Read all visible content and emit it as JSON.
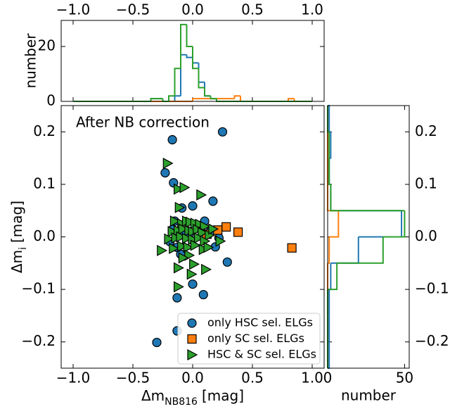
{
  "chart_data": [
    {
      "type": "scatter",
      "annotation": "After NB correction",
      "xlabel": "Δm",
      "xlabel_sub": "NB816",
      "xlabel_unit": "[mag]",
      "ylabel": "Δm",
      "ylabel_sub": "i",
      "ylabel_unit": "[mag]",
      "xlim": [
        -1.1,
        1.1
      ],
      "xticks": [
        {
          "value": -1.0,
          "label": "−1.0"
        },
        {
          "value": -0.5,
          "label": "−0.5"
        },
        {
          "value": 0,
          "label": "0.0"
        },
        0.5,
        {
          "value": 1.0,
          "label": "1.0"
        }
      ],
      "ylim": [
        -0.25,
        0.25
      ],
      "yticks": [
        {
          "value": -0.2,
          "label": "−0.2"
        },
        {
          "value": -0.1,
          "label": "−0.1"
        },
        {
          "value": 0,
          "label": "0.0"
        },
        0.1,
        0.2
      ],
      "legend": "lower right",
      "series": [
        {
          "name": "only HSC sel. ELGs",
          "color": "#1f77b4",
          "marker": "circle",
          "x": [
            0.25,
            -0.17,
            -0.23,
            -0.16,
            0.0,
            0.17,
            -0.09,
            -0.15,
            -0.17,
            0.29,
            0.0,
            0.09,
            -0.13,
            -0.13,
            -0.3,
            -0.19,
            0.15,
            0.1,
            0.22,
            0.19,
            -0.1,
            -0.07,
            -0.03,
            0.07,
            -0.13
          ],
          "y": [
            0.2,
            0.185,
            0.122,
            0.103,
            0.059,
            0.068,
            0.055,
            0.03,
            0.014,
            -0.048,
            -0.09,
            -0.11,
            -0.116,
            -0.179,
            -0.201,
            -0.009,
            0.011,
            0.03,
            -0.002,
            -0.019,
            -0.033,
            0.01,
            0.003,
            0.018,
            -0.02
          ]
        },
        {
          "name": "only SC sel. ELGs",
          "color": "#ff7f0e",
          "marker": "square",
          "x": [
            0.28,
            0.38,
            0.21,
            0.12,
            0.83
          ],
          "y": [
            0.019,
            0.009,
            0.013,
            0.005,
            -0.021
          ]
        },
        {
          "name": "HSC & SC sel. ELGs",
          "color": "#2ca02c",
          "marker": "triangle-right",
          "x": [
            -0.21,
            -0.12,
            -0.07,
            0.07,
            -0.11,
            -0.15,
            -0.09,
            -0.05,
            -0.02,
            0.02,
            0.06,
            0.1,
            -0.17,
            -0.12,
            -0.08,
            -0.03,
            0.0,
            0.04,
            0.08,
            0.14,
            0.17,
            0.23,
            -0.2,
            -0.14,
            -0.1,
            -0.05,
            0.0,
            0.05,
            0.1,
            -0.26,
            -0.16,
            -0.09,
            -0.04,
            0.02,
            0.09,
            0.13,
            -0.12,
            0.01,
            0.11,
            -0.01,
            -0.12,
            -0.03,
            -0.08
          ],
          "y": [
            0.14,
            0.091,
            0.094,
            0.08,
            0.056,
            0.03,
            0.025,
            0.03,
            0.028,
            0.026,
            0.024,
            0.02,
            0.01,
            0.012,
            0.015,
            0.012,
            0.01,
            0.014,
            0.008,
            0.003,
            0.015,
            -0.008,
            -0.004,
            -0.002,
            0.0,
            -0.003,
            -0.005,
            -0.002,
            -0.008,
            -0.026,
            -0.022,
            -0.018,
            -0.02,
            -0.016,
            -0.024,
            -0.02,
            -0.059,
            -0.052,
            -0.062,
            -0.071,
            -0.095,
            -0.035,
            -0.04
          ]
        }
      ]
    },
    {
      "type": "histogram",
      "orientation": "vertical",
      "ylabel": "number",
      "xlim": [
        -1.1,
        1.1
      ],
      "xticks": [
        {
          "value": -1.0,
          "label": "−1.0"
        },
        {
          "value": -0.5,
          "label": "−0.5"
        },
        {
          "value": 0,
          "label": "0.0"
        },
        0.5,
        {
          "value": 1.0,
          "label": "1.0"
        }
      ],
      "ylim": [
        0,
        29.5
      ],
      "yticks": [
        0,
        20
      ],
      "bins": [
        -1.0,
        -0.95,
        -0.9,
        -0.85,
        -0.8,
        -0.75,
        -0.7,
        -0.65,
        -0.6,
        -0.55,
        -0.5,
        -0.45,
        -0.4,
        -0.35,
        -0.3,
        -0.25,
        -0.2,
        -0.15,
        -0.1,
        -0.05,
        0.0,
        0.05,
        0.1,
        0.15,
        0.2,
        0.25,
        0.3,
        0.35,
        0.4,
        0.45,
        0.5,
        0.55,
        0.6,
        0.65,
        0.7,
        0.75,
        0.8,
        0.85,
        0.9,
        0.95,
        1.0
      ],
      "series": [
        {
          "color": "#1f77b4",
          "values": [
            0,
            0,
            0,
            0,
            0,
            0,
            0,
            0,
            0,
            0,
            0,
            0,
            0,
            1,
            1,
            0,
            0,
            2,
            17,
            16,
            14,
            7,
            2,
            1,
            0,
            0,
            0,
            0,
            0,
            0,
            0,
            0,
            0,
            0,
            0,
            0,
            0,
            0,
            0,
            0
          ]
        },
        {
          "color": "#ff7f0e",
          "values": [
            0,
            0,
            0,
            0,
            0,
            0,
            0,
            0,
            0,
            0,
            0,
            0,
            0,
            0,
            0,
            0,
            0,
            0,
            0,
            0,
            1,
            1,
            1,
            1,
            1,
            1,
            1,
            2,
            0,
            0,
            0,
            0,
            0,
            0,
            0,
            0,
            1,
            0,
            0,
            0
          ]
        },
        {
          "color": "#2ca02c",
          "values": [
            0,
            0,
            0,
            0,
            0,
            0,
            0,
            0,
            0,
            0,
            0,
            0,
            0,
            1,
            1,
            0,
            2,
            12,
            28,
            20,
            12,
            5,
            2,
            1,
            0,
            0,
            0,
            0,
            0,
            0,
            0,
            0,
            0,
            0,
            0,
            0,
            0,
            0,
            0,
            0
          ]
        }
      ]
    },
    {
      "type": "histogram",
      "orientation": "horizontal",
      "xlabel": "number",
      "xlim": [
        0,
        53
      ],
      "xticks": [
        0,
        50
      ],
      "ylim": [
        -0.25,
        0.25
      ],
      "yticks": [
        {
          "value": -0.2,
          "label": "−0.2"
        },
        {
          "value": -0.1,
          "label": "−0.1"
        },
        {
          "value": 0,
          "label": "0.0"
        },
        0.1,
        0.2
      ],
      "bins": [
        -0.25,
        -0.2,
        -0.15,
        -0.1,
        -0.05,
        0.0,
        0.05,
        0.1,
        0.15,
        0.2,
        0.25
      ],
      "series": [
        {
          "color": "#1f77b4",
          "values": [
            1,
            1,
            1,
            2,
            20,
            48,
            2,
            1,
            2,
            1
          ]
        },
        {
          "color": "#ff7f0e",
          "values": [
            0,
            0,
            0,
            0,
            1,
            7,
            0,
            0,
            0,
            0
          ]
        },
        {
          "color": "#2ca02c",
          "values": [
            0,
            0,
            0,
            6,
            36,
            50,
            2,
            1,
            1,
            0
          ]
        }
      ]
    }
  ]
}
